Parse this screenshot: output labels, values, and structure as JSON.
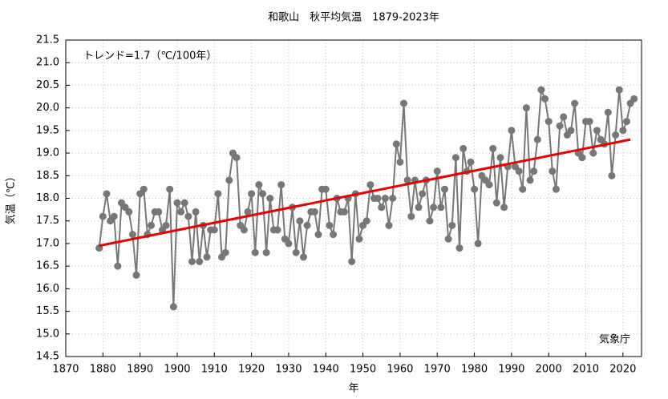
{
  "chart_data": {
    "type": "line",
    "title": "和歌山　秋平均気温　1879-2023年",
    "x_label": "年",
    "y_label": "気温（℃）",
    "annotations": [
      "トレンド=1.7（℃/100年）",
      "気象庁"
    ],
    "x": [
      1879,
      1880,
      1881,
      1882,
      1883,
      1884,
      1885,
      1886,
      1887,
      1888,
      1889,
      1890,
      1891,
      1892,
      1893,
      1894,
      1895,
      1896,
      1897,
      1898,
      1899,
      1900,
      1901,
      1902,
      1903,
      1904,
      1905,
      1906,
      1907,
      1908,
      1909,
      1910,
      1911,
      1912,
      1913,
      1914,
      1915,
      1916,
      1917,
      1918,
      1919,
      1920,
      1921,
      1922,
      1923,
      1924,
      1925,
      1926,
      1927,
      1928,
      1929,
      1930,
      1931,
      1932,
      1933,
      1934,
      1935,
      1936,
      1937,
      1938,
      1939,
      1940,
      1941,
      1942,
      1943,
      1944,
      1945,
      1946,
      1947,
      1948,
      1949,
      1950,
      1951,
      1952,
      1953,
      1954,
      1955,
      1956,
      1957,
      1958,
      1959,
      1960,
      1961,
      1962,
      1963,
      1964,
      1965,
      1966,
      1967,
      1968,
      1969,
      1970,
      1971,
      1972,
      1973,
      1974,
      1975,
      1976,
      1977,
      1978,
      1979,
      1980,
      1981,
      1982,
      1983,
      1984,
      1985,
      1986,
      1987,
      1988,
      1989,
      1990,
      1991,
      1992,
      1993,
      1994,
      1995,
      1996,
      1997,
      1998,
      1999,
      2000,
      2001,
      2002,
      2003,
      2004,
      2005,
      2006,
      2007,
      2008,
      2009,
      2010,
      2011,
      2012,
      2013,
      2014,
      2015,
      2016,
      2017,
      2018,
      2019,
      2020,
      2021,
      2022,
      2023
    ],
    "series": [
      {
        "color": "#777777",
        "values": [
          16.9,
          17.6,
          18.1,
          17.5,
          17.6,
          16.5,
          17.9,
          17.8,
          17.7,
          17.2,
          16.3,
          18.1,
          18.2,
          17.2,
          17.4,
          17.7,
          17.7,
          17.3,
          17.4,
          18.2,
          15.6,
          17.9,
          17.7,
          17.9,
          17.6,
          16.6,
          17.7,
          16.6,
          17.4,
          16.7,
          17.3,
          17.3,
          18.1,
          16.7,
          16.8,
          18.4,
          19.0,
          18.9,
          17.4,
          17.3,
          17.7,
          18.1,
          16.8,
          18.3,
          18.1,
          16.8,
          18.0,
          17.3,
          17.3,
          18.3,
          17.1,
          17.0,
          17.8,
          16.8,
          17.5,
          16.7,
          17.4,
          17.7,
          17.7,
          17.2,
          18.2,
          18.2,
          17.4,
          17.2,
          18.0,
          17.7,
          17.7,
          18.0,
          16.6,
          18.1,
          17.1,
          17.4,
          17.5,
          18.3,
          18.0,
          18.0,
          17.8,
          18.0,
          17.4,
          18.0,
          19.2,
          18.8,
          20.1,
          18.4,
          17.6,
          18.4,
          17.8,
          18.1,
          18.4,
          17.5,
          17.8,
          18.6,
          17.8,
          18.2,
          17.1,
          17.4,
          18.9,
          16.9,
          19.1,
          18.6,
          18.8,
          18.2,
          17.0,
          18.5,
          18.4,
          18.3,
          19.1,
          17.9,
          18.9,
          17.8,
          18.7,
          19.5,
          18.7,
          18.6,
          18.2,
          20.0,
          18.4,
          18.6,
          19.3,
          20.4,
          20.2,
          19.7,
          18.6,
          18.2,
          19.6,
          19.8,
          19.4,
          19.5,
          20.1,
          19.0,
          18.9,
          19.7,
          19.7,
          19.0,
          19.5,
          19.3,
          19.2,
          19.9,
          18.5,
          19.4,
          20.4,
          19.5,
          19.7,
          20.1,
          20.2
        ]
      }
    ],
    "trend": {
      "color": "#e60000",
      "x": [
        1879,
        2022
      ],
      "values": [
        16.95,
        19.3
      ]
    },
    "xlim": [
      1870,
      2025
    ],
    "xticks": [
      1870,
      1880,
      1890,
      1900,
      1910,
      1920,
      1930,
      1940,
      1950,
      1960,
      1970,
      1980,
      1990,
      2000,
      2010,
      2020
    ],
    "ylim": [
      14.5,
      21.5
    ],
    "yticks": [
      14.5,
      {
        "value": 15,
        "label": "15.0"
      },
      15.5,
      {
        "value": 16,
        "label": "16.0"
      },
      16.5,
      {
        "value": 17,
        "label": "17.0"
      },
      17.5,
      {
        "value": 18,
        "label": "18.0"
      },
      18.5,
      {
        "value": 19,
        "label": "19.0"
      },
      19.5,
      {
        "value": 20,
        "label": "20.0"
      },
      20.5,
      {
        "value": 21,
        "label": "21.0"
      },
      21.5
    ],
    "grid": true
  }
}
